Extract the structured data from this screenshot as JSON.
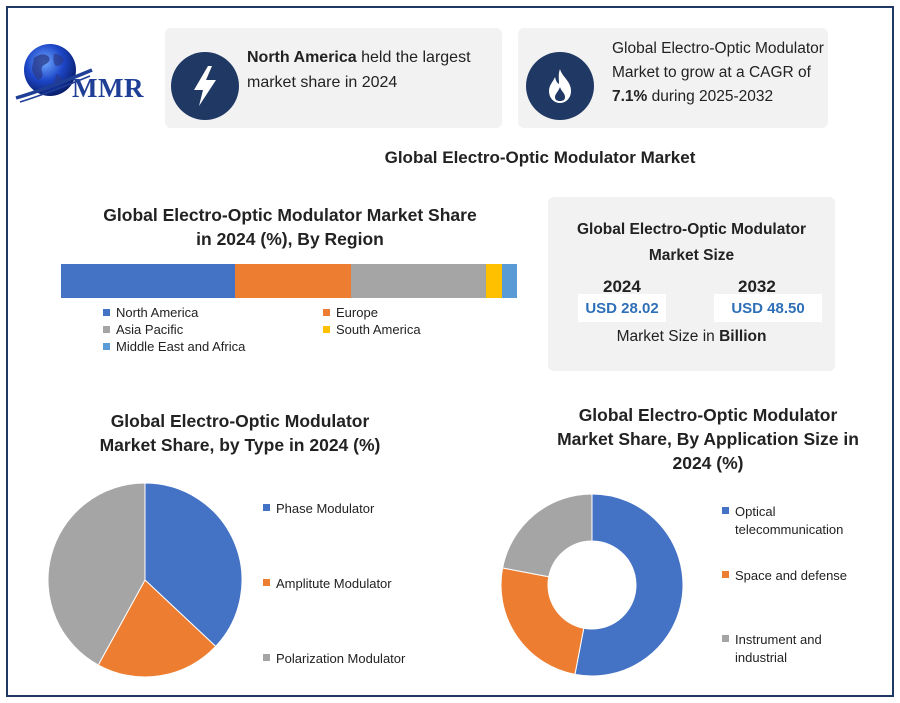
{
  "logo": {
    "text": "MMR"
  },
  "cards": [
    {
      "icon": "lightning-icon",
      "bold": "North America",
      "rest": " held the largest market share in 2024"
    },
    {
      "icon": "flame-icon",
      "line": "Global Electro-Optic Modulator Market to grow at a CAGR of ",
      "bold": "7.1%",
      "rest": " during 2025-2032"
    }
  ],
  "main_title": "Global Electro-Optic Modulator Market",
  "market_size": {
    "title_line1": "Global Electro-Optic Modulator",
    "title_line2": "Market Size",
    "year1": "2024",
    "value1": "USD 28.02",
    "year2": "2032",
    "value2": "USD 48.50",
    "note_prefix": "Market Size in ",
    "note_bold": "Billion"
  },
  "colors": {
    "blue": "#4472c4",
    "orange": "#ed7d31",
    "gray": "#a5a5a5",
    "yellow": "#ffc000",
    "light_blue": "#5b9bd5",
    "navy": "#1f3864"
  },
  "chart_data": [
    {
      "type": "bar",
      "orientation": "horizontal-stacked",
      "title_line1": "Global Electro-Optic Modulator Market Share",
      "title_line2": "in 2024 (%), By Region",
      "series": [
        {
          "name": "North America",
          "value": 38.2,
          "color": "#4472c4"
        },
        {
          "name": "Europe",
          "value": 25.4,
          "color": "#ed7d31"
        },
        {
          "name": "Asia Pacific",
          "value": 29.6,
          "color": "#a5a5a5"
        },
        {
          "name": "South America",
          "value": 3.5,
          "color": "#ffc000"
        },
        {
          "name": "Middle East and Africa",
          "value": 3.3,
          "color": "#5b9bd5"
        }
      ],
      "legend": "bottom"
    },
    {
      "type": "pie",
      "title_line1": "Global Electro-Optic Modulator",
      "title_line2": "Market Share, by Type in 2024 (%)",
      "slices": [
        {
          "name": "Phase Modulator",
          "value": 37,
          "color": "#4472c4"
        },
        {
          "name": "Amplitute Modulator",
          "value": 21,
          "color": "#ed7d31"
        },
        {
          "name": "Polarization Modulator",
          "value": 42,
          "color": "#a5a5a5"
        }
      ],
      "legend": "right"
    },
    {
      "type": "pie",
      "variant": "donut",
      "title_line1": "Global Electro-Optic Modulator",
      "title_line2": "Market Share, By Application Size in",
      "title_line3": "2024 (%)",
      "slices": [
        {
          "name": "Optical telecommunication",
          "value": 53,
          "color": "#4472c4"
        },
        {
          "name": "Space and defense",
          "value": 25,
          "color": "#ed7d31"
        },
        {
          "name": "Instrument and industrial",
          "value": 22,
          "color": "#a5a5a5"
        }
      ],
      "legend": "right"
    }
  ]
}
